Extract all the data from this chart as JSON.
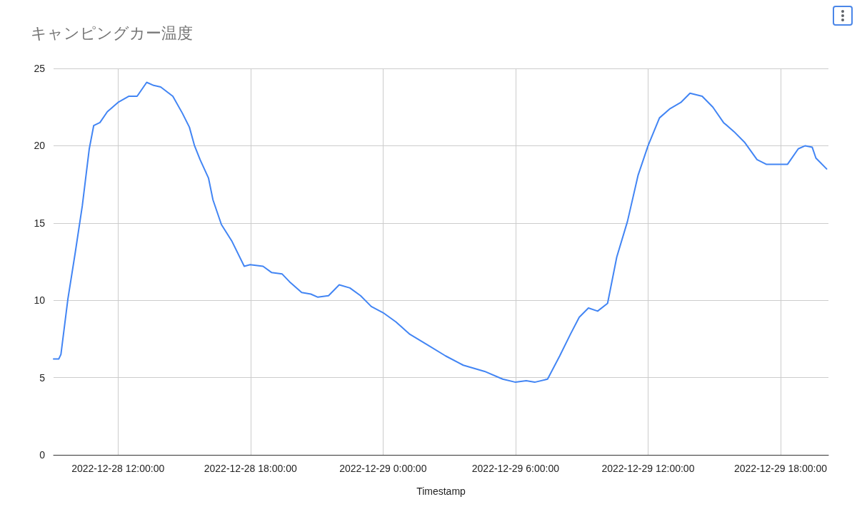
{
  "chart_data": {
    "type": "line",
    "title": "キャンピングカー温度",
    "xlabel": "Timestamp",
    "xlim": [
      "2022-12-28T09:05",
      "2022-12-29T20:10"
    ],
    "xticks": [
      {
        "value": "2022-12-28T12:00",
        "label": "2022-12-28 12:00:00"
      },
      {
        "value": "2022-12-28T18:00",
        "label": "2022-12-28 18:00:00"
      },
      {
        "value": "2022-12-29T00:00",
        "label": "2022-12-29 0:00:00"
      },
      {
        "value": "2022-12-29T06:00",
        "label": "2022-12-29 6:00:00"
      },
      {
        "value": "2022-12-29T12:00",
        "label": "2022-12-29 12:00:00"
      },
      {
        "value": "2022-12-29T18:00",
        "label": "2022-12-29 18:00:00"
      }
    ],
    "ylim": [
      0,
      25
    ],
    "yticks": [
      0,
      5,
      10,
      15,
      20,
      25
    ],
    "grid": true,
    "marker": "none",
    "line_style": "solid",
    "series": [
      {
        "color": "#4285f4",
        "x": [
          "2022-12-28T09:05",
          "2022-12-28T09:19",
          "2022-12-28T09:25",
          "2022-12-28T09:44",
          "2022-12-28T10:04",
          "2022-12-28T10:23",
          "2022-12-28T10:42",
          "2022-12-28T10:54",
          "2022-12-28T11:11",
          "2022-12-28T11:31",
          "2022-12-28T12:00",
          "2022-12-28T12:29",
          "2022-12-28T12:52",
          "2022-12-28T13:18",
          "2022-12-28T13:37",
          "2022-12-28T13:56",
          "2022-12-28T14:29",
          "2022-12-28T14:55",
          "2022-12-28T15:14",
          "2022-12-28T15:28",
          "2022-12-28T15:43",
          "2022-12-28T16:06",
          "2022-12-28T16:18",
          "2022-12-28T16:41",
          "2022-12-28T17:10",
          "2022-12-28T17:43",
          "2022-12-28T17:59",
          "2022-12-28T18:34",
          "2022-12-28T18:57",
          "2022-12-28T19:26",
          "2022-12-28T19:46",
          "2022-12-28T20:19",
          "2022-12-28T20:44",
          "2022-12-28T21:03",
          "2022-12-28T21:32",
          "2022-12-28T22:01",
          "2022-12-28T22:30",
          "2022-12-28T22:59",
          "2022-12-28T23:28",
          "2022-12-29T00:00",
          "2022-12-29T00:35",
          "2022-12-29T01:13",
          "2022-12-29T02:02",
          "2022-12-29T02:50",
          "2022-12-29T03:38",
          "2022-12-29T04:36",
          "2022-12-29T05:25",
          "2022-12-29T06:00",
          "2022-12-29T06:29",
          "2022-12-29T06:52",
          "2022-12-29T07:27",
          "2022-12-29T08:00",
          "2022-12-29T08:29",
          "2022-12-29T08:53",
          "2022-12-29T09:18",
          "2022-12-29T09:43",
          "2022-12-29T10:10",
          "2022-12-29T10:35",
          "2022-12-29T11:04",
          "2022-12-29T11:33",
          "2022-12-29T12:00",
          "2022-12-29T12:31",
          "2022-12-29T13:00",
          "2022-12-29T13:29",
          "2022-12-29T13:54",
          "2022-12-29T14:27",
          "2022-12-29T14:56",
          "2022-12-29T15:25",
          "2022-12-29T15:54",
          "2022-12-29T16:23",
          "2022-12-29T16:56",
          "2022-12-29T17:21",
          "2022-12-29T18:19",
          "2022-12-29T18:48",
          "2022-12-29T19:07",
          "2022-12-29T19:26",
          "2022-12-29T19:36",
          "2022-12-29T20:05"
        ],
        "values": [
          6.2,
          6.2,
          6.5,
          10.1,
          13.1,
          16.1,
          19.8,
          21.3,
          21.5,
          22.2,
          22.8,
          23.2,
          23.2,
          24.1,
          23.9,
          23.8,
          23.2,
          22.1,
          21.2,
          20.0,
          19.1,
          17.9,
          16.5,
          14.9,
          13.8,
          12.2,
          12.3,
          12.2,
          11.8,
          11.7,
          11.2,
          10.5,
          10.4,
          10.2,
          10.3,
          11.0,
          10.8,
          10.3,
          9.6,
          9.2,
          8.6,
          7.8,
          7.1,
          6.4,
          5.8,
          5.4,
          4.9,
          4.7,
          4.8,
          4.7,
          4.9,
          6.4,
          7.8,
          8.9,
          9.5,
          9.3,
          9.8,
          12.8,
          15.1,
          18.1,
          20.0,
          21.8,
          22.4,
          22.8,
          23.4,
          23.2,
          22.5,
          21.5,
          20.9,
          20.2,
          19.1,
          18.8,
          18.8,
          19.8,
          20.0,
          19.9,
          19.2,
          18.5
        ]
      }
    ]
  }
}
